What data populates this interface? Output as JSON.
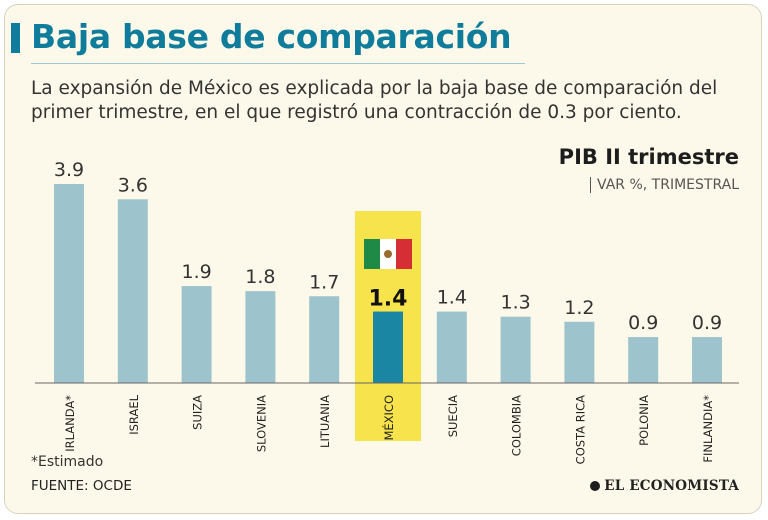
{
  "header": {
    "title": "Baja base de comparación",
    "subtitle": "La expansión de México es explicada por la baja base de comparación del primer trimestre, en el que registró una contracción de 0.3 por ciento."
  },
  "chart_header": {
    "title": "PIB II trimestre",
    "unit": "VAR %, TRIMESTRAL"
  },
  "chart_data": {
    "type": "bar",
    "title": "PIB II trimestre",
    "ylabel": "VAR %, TRIMESTRAL",
    "categories": [
      "IRLANDA*",
      "ISRAEL",
      "SUIZA",
      "SLOVENIA",
      "LITUANIA",
      "MÉXICO",
      "SUECIA",
      "COLOMBIA",
      "COSTA RICA",
      "POLONIA",
      "FINLANDIA*"
    ],
    "values": [
      3.9,
      3.6,
      1.9,
      1.8,
      1.7,
      1.4,
      1.4,
      1.3,
      1.2,
      0.9,
      0.9
    ],
    "labels": [
      "3.9",
      "3.6",
      "1.9",
      "1.8",
      "1.7",
      "1.4",
      "1.4",
      "1.3",
      "1.2",
      "0.9",
      "0.9"
    ],
    "highlight": "MÉXICO",
    "ylim": [
      0,
      3.9
    ],
    "grid": false,
    "colors": {
      "bar": "#9dc3cc",
      "highlight_bar": "#1a86a3",
      "highlight_band": "#f7e34b",
      "baseline": "#666666",
      "label": "#333333"
    }
  },
  "flag_icon": "mexico-flag-icon",
  "footer": {
    "note": "*Estimado",
    "source": "FUENTE:  OCDE",
    "logo": "EL ECONOMISTA"
  }
}
